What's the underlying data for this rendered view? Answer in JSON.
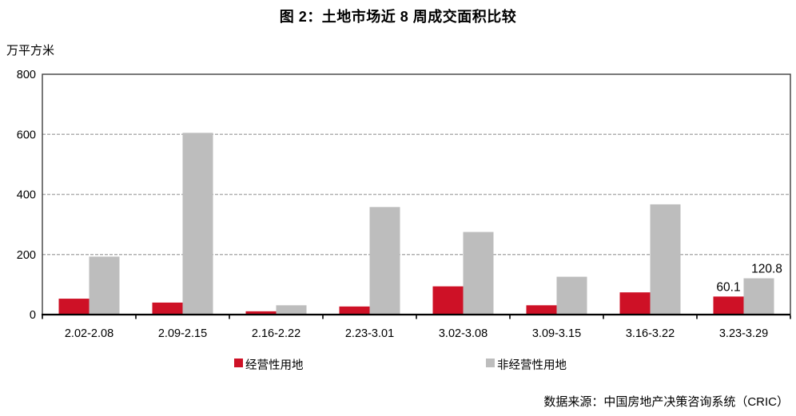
{
  "title": "图 2：土地市场近 8 周成交面积比较",
  "source": "数据来源：中国房地产决策咨询系统（CRIC）",
  "colors": {
    "operational_red": "#CE1126",
    "non_operational_gray": "#BDBDBD",
    "gridline": "#AFAFAF",
    "frame": "#3F3F3F",
    "axis": "#000000",
    "text": "#000000"
  },
  "chart_data": {
    "type": "bar",
    "title": "图 2：土地市场近 8 周成交面积比较",
    "xlabel": "",
    "ylabel": "万平方米",
    "ylim": [
      0,
      800
    ],
    "yticks": [
      0,
      200,
      400,
      600,
      800
    ],
    "grid": "horizontal dashed at 200, 400, 600",
    "legend_position": "bottom",
    "categories": [
      "2.02-2.08",
      "2.09-2.15",
      "2.16-2.22",
      "2.23-3.01",
      "3.02-3.08",
      "3.09-3.15",
      "3.16-3.22",
      "3.23-3.29"
    ],
    "series": [
      {
        "name": "经营性用地",
        "color": "#CE1126",
        "values": [
          53,
          40,
          11,
          27,
          94,
          31,
          74,
          60.1
        ]
      },
      {
        "name": "非经营性用地",
        "color": "#BDBDBD",
        "values": [
          193,
          605,
          31,
          358,
          275,
          126,
          367,
          120.8
        ]
      }
    ],
    "annotations": [
      {
        "series": 0,
        "category_index": 7,
        "text": "60.1"
      },
      {
        "series": 1,
        "category_index": 7,
        "text": "120.8"
      }
    ]
  }
}
